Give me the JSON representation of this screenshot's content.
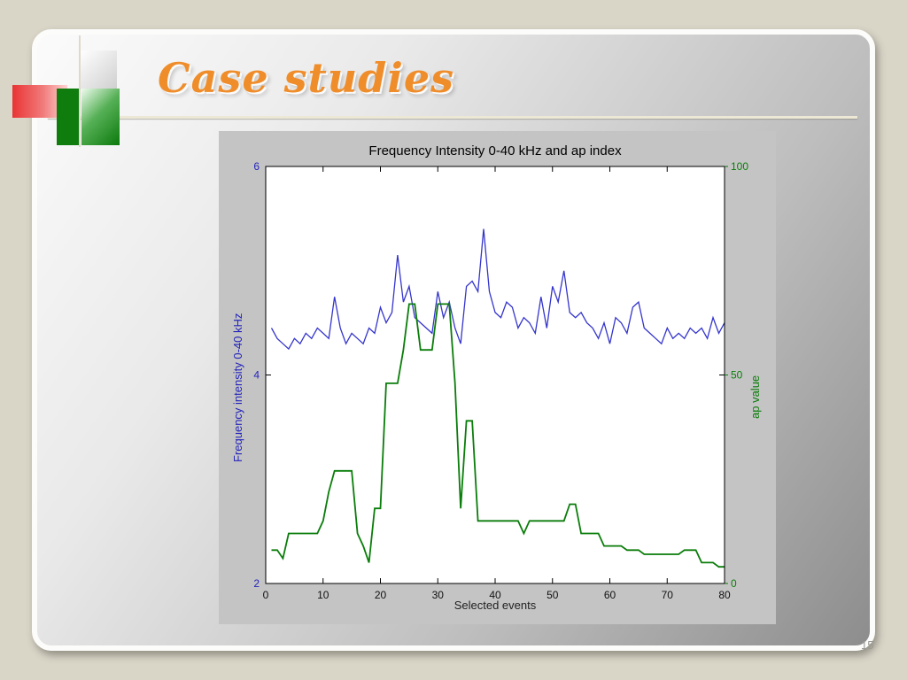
{
  "slide": {
    "title": "Case studies",
    "page_number": "15"
  },
  "chart_data": {
    "type": "line",
    "title": "Frequency Intensity 0-40 kHz and ap index",
    "xlabel": "Selected events",
    "x_range": [
      0,
      80
    ],
    "x_ticks": [
      0,
      10,
      20,
      30,
      40,
      50,
      60,
      70,
      80
    ],
    "left_axis": {
      "label": "Frequency intensity 0-40 kHz",
      "range": [
        2,
        6
      ],
      "ticks": [
        2,
        4,
        6
      ],
      "color": "#2424bb"
    },
    "right_axis": {
      "label": "ap value",
      "range": [
        0,
        100
      ],
      "ticks": [
        0,
        50,
        100
      ],
      "color": "#0a7d0a"
    },
    "grid": "off",
    "legend": "none",
    "series": [
      {
        "name": "Frequency intensity 0-40 kHz",
        "axis": "left",
        "color": "#3535cc",
        "width": 1.3,
        "values": [
          4.45,
          4.35,
          4.3,
          4.25,
          4.35,
          4.3,
          4.4,
          4.35,
          4.45,
          4.4,
          4.35,
          4.75,
          4.45,
          4.3,
          4.4,
          4.35,
          4.3,
          4.45,
          4.4,
          4.65,
          4.5,
          4.6,
          5.15,
          4.7,
          4.85,
          4.55,
          4.5,
          4.45,
          4.4,
          4.8,
          4.55,
          4.7,
          4.45,
          4.3,
          4.85,
          4.9,
          4.8,
          5.4,
          4.8,
          4.6,
          4.55,
          4.7,
          4.65,
          4.45,
          4.55,
          4.5,
          4.4,
          4.75,
          4.45,
          4.85,
          4.7,
          5.0,
          4.6,
          4.55,
          4.6,
          4.5,
          4.45,
          4.35,
          4.5,
          4.3,
          4.55,
          4.5,
          4.4,
          4.65,
          4.7,
          4.45,
          4.4,
          4.35,
          4.3,
          4.45,
          4.35,
          4.4,
          4.35,
          4.45,
          4.4,
          4.45,
          4.35,
          4.55,
          4.4,
          4.5
        ]
      },
      {
        "name": "ap value",
        "axis": "right",
        "color": "#0a7d0a",
        "width": 1.8,
        "values": [
          8,
          8,
          6,
          12,
          12,
          12,
          12,
          12,
          12,
          15,
          22,
          27,
          27,
          27,
          27,
          12,
          9,
          5,
          18,
          18,
          48,
          48,
          48,
          56,
          67,
          67,
          56,
          56,
          56,
          67,
          67,
          67,
          48,
          18,
          39,
          39,
          15,
          15,
          15,
          15,
          15,
          15,
          15,
          15,
          12,
          15,
          15,
          15,
          15,
          15,
          15,
          15,
          19,
          19,
          12,
          12,
          12,
          12,
          9,
          9,
          9,
          9,
          8,
          8,
          8,
          7,
          7,
          7,
          7,
          7,
          7,
          7,
          8,
          8,
          8,
          5,
          5,
          5,
          4,
          4
        ]
      }
    ]
  }
}
